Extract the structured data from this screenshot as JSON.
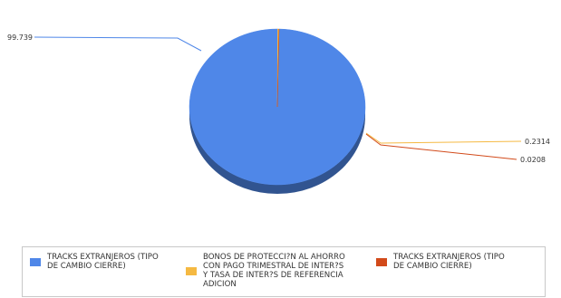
{
  "chart_data": {
    "type": "pie",
    "title": "",
    "values": [
      99.739,
      0.2314,
      0.0208
    ],
    "data_labels": [
      "99.739",
      "0.2314",
      "0.0208"
    ],
    "series": [
      {
        "name": "TRACKS EXTRANJEROS (TIPO\nDE CAMBIO CIERRE)",
        "color": "#4f87e8"
      },
      {
        "name": "BONOS DE PROTECCI?N AL AHORRO\nCON PAGO TRIMESTRAL DE INTER?S\nY TASA DE INTER?S DE REFERENCIA\nADICION",
        "color": "#f5b942"
      },
      {
        "name": "TRACKS EXTRANJEROS (TIPO\nDE CAMBIO CIERRE)",
        "color": "#d24a1a"
      }
    ],
    "legend_position": "bottom"
  }
}
